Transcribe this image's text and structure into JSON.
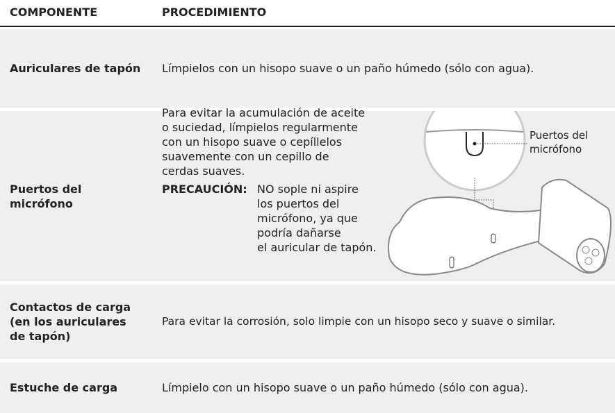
{
  "header": {
    "columns": [
      "COMPONENTE",
      "PROCEDIMIENTO"
    ]
  },
  "table": {
    "rows": [
      {
        "component": [
          "Auriculares de tapón"
        ],
        "procedure": "Límpielos con un hisopo suave o un paño húmedo (sólo con agua)."
      },
      {
        "component": [
          "Puertos del",
          "micrófono"
        ],
        "procedure": {
          "text": [
            "Para evitar la acumulación de aceite",
            "o suciedad, límpielos regularmente",
            "con un hisopo suave o cepíllelos",
            "suavemente con un cepillo de",
            "cerdas suaves."
          ],
          "caution_label": "PRECAUCIÓN:",
          "caution_text": [
            "NO sople ni aspire",
            "los puertos del",
            "micrófono, ya que",
            "podría dañarse",
            "el auricular de tapón."
          ],
          "callout": [
            "Puertos del",
            "micrófono"
          ]
        }
      },
      {
        "component": [
          "Contactos de carga",
          "(en los auriculares",
          "de tapón)"
        ],
        "procedure": "Para evitar la corrosión, solo limpie con un hisopo seco y suave o similar."
      },
      {
        "component": [
          "Estuche de carga"
        ],
        "procedure": "Límpielo con un hisopo suave o un paño húmedo (sólo con agua)."
      }
    ]
  }
}
